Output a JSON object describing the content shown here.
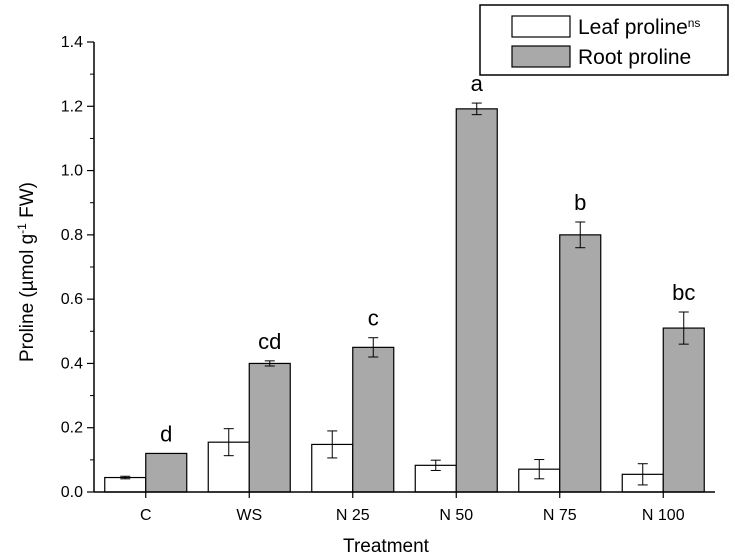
{
  "chart_data": {
    "type": "bar",
    "xlabel": "Treatment",
    "ylabel_main": "Proline (µmol g",
    "ylabel_sup": "-1",
    "ylabel_tail": " FW)",
    "categories": [
      "C",
      "WS",
      "N 25",
      "N 50",
      "N 75",
      "N 100"
    ],
    "ylim": [
      0,
      1.4
    ],
    "yticks": [
      "0.0",
      "0.2",
      "0.4",
      "0.6",
      "0.8",
      "1.0",
      "1.2",
      "1.4"
    ],
    "legend_position": "top-right",
    "grid": false,
    "series": [
      {
        "name": "Leaf proline",
        "name_sup": "ns",
        "color": "#ffffff",
        "values": [
          0.045,
          0.155,
          0.148,
          0.083,
          0.071,
          0.055
        ],
        "errors": [
          0.004,
          0.042,
          0.042,
          0.016,
          0.03,
          0.033
        ],
        "labels": [
          "",
          "",
          "",
          "",
          "",
          ""
        ]
      },
      {
        "name": "Root proline",
        "name_sup": "",
        "color": "#a9a9a9",
        "values": [
          0.12,
          0.4,
          0.45,
          1.192,
          0.8,
          0.51
        ],
        "errors": [
          0.0,
          0.008,
          0.03,
          0.018,
          0.04,
          0.05
        ],
        "labels": [
          "d",
          "cd",
          "c",
          "a",
          "b",
          "bc"
        ]
      }
    ]
  }
}
